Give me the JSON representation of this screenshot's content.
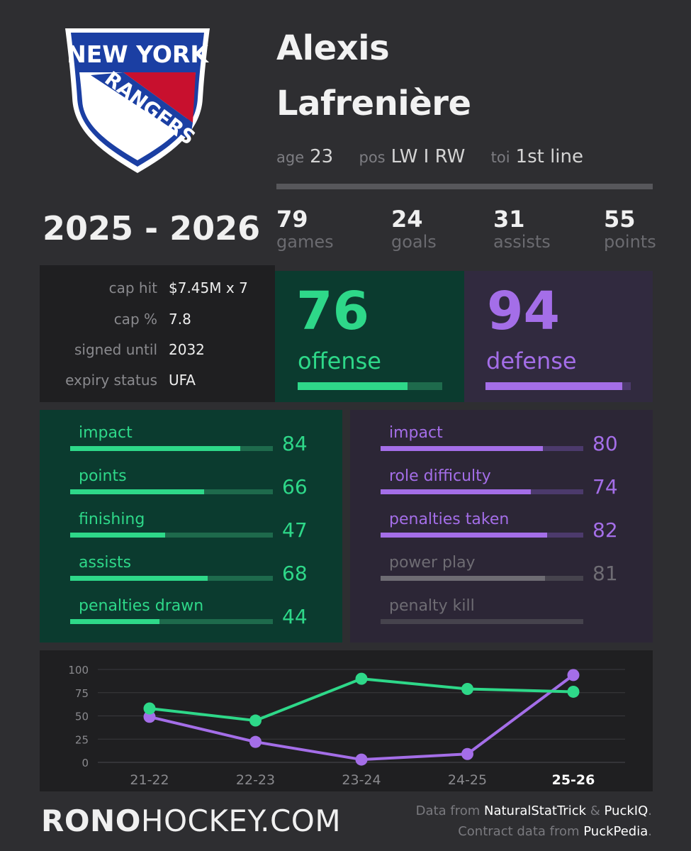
{
  "team": {
    "logo_line1": "NEW YORK",
    "logo_line2": "RANGERS",
    "colors": {
      "blue": "#1b3fa3",
      "red": "#c8102e",
      "white": "#ffffff"
    }
  },
  "player": {
    "first_name": "Alexis",
    "last_name": "Lafrenière",
    "age_label": "age",
    "age": "23",
    "pos_label": "pos",
    "pos": "LW I RW",
    "toi_label": "toi",
    "toi": "1st line"
  },
  "season": "2025 - 2026",
  "stats": [
    {
      "value": "79",
      "label": "games"
    },
    {
      "value": "24",
      "label": "goals"
    },
    {
      "value": "31",
      "label": "assists"
    },
    {
      "value": "55",
      "label": "points"
    }
  ],
  "contract": [
    {
      "label": "cap hit",
      "value": "$7.45M x 7"
    },
    {
      "label": "cap %",
      "value": "7.8"
    },
    {
      "label": "signed until",
      "value": "2032"
    },
    {
      "label": "expiry status",
      "value": "UFA"
    }
  ],
  "offense": {
    "score": "76",
    "label": "offense",
    "fill": 0.76,
    "color": "#2ed889",
    "track": "#1e6a4c",
    "components": [
      {
        "label": "impact",
        "value": "84",
        "fill": 0.84
      },
      {
        "label": "points",
        "value": "66",
        "fill": 0.66
      },
      {
        "label": "finishing",
        "value": "47",
        "fill": 0.47
      },
      {
        "label": "assists",
        "value": "68",
        "fill": 0.68
      },
      {
        "label": "penalties drawn",
        "value": "44",
        "fill": 0.44
      }
    ]
  },
  "defense": {
    "score": "94",
    "label": "defense",
    "fill": 0.94,
    "color": "#a46ee8",
    "track": "#4c3a6c",
    "components": [
      {
        "label": "impact",
        "value": "80",
        "fill": 0.8,
        "active": true
      },
      {
        "label": "role difficulty",
        "value": "74",
        "fill": 0.74,
        "active": true
      },
      {
        "label": "penalties taken",
        "value": "82",
        "fill": 0.82,
        "active": true
      },
      {
        "label": "power play",
        "value": "81",
        "fill": 0.81,
        "active": false
      },
      {
        "label": "penalty kill",
        "value": "",
        "fill": 0,
        "active": false
      }
    ]
  },
  "chart_data": {
    "type": "line",
    "categories": [
      "21-22",
      "22-23",
      "23-24",
      "24-25",
      "25-26"
    ],
    "highlight_category": "25-26",
    "yticks": [
      100,
      75,
      50,
      25,
      0
    ],
    "ylim": [
      0,
      100
    ],
    "grid": true,
    "series": [
      {
        "color": "#2ed889",
        "values": [
          58,
          45,
          90,
          79,
          76
        ]
      },
      {
        "color": "#a46ee8",
        "values": [
          49,
          22,
          3,
          9,
          94
        ]
      }
    ]
  },
  "footer": {
    "brand_bold": "RONO",
    "brand_rest": "HOCKEY.COM",
    "credit1_prefix": "Data from ",
    "credit1_src1": "NaturalStatTrick",
    "credit1_amp": " & ",
    "credit1_src2": "PuckIQ",
    "credit1_end": ".",
    "credit2_prefix": "Contract data from ",
    "credit2_src": "PuckPedia",
    "credit2_end": "."
  }
}
